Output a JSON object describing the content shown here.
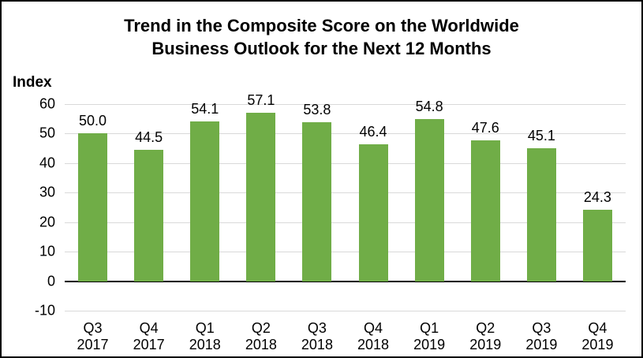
{
  "header": {
    "title_line1": "Trend in the Composite Score on the Worldwide",
    "title_line2": "Business Outlook for the Next 12 Months"
  },
  "axis": {
    "y_label": "Index"
  },
  "colors": {
    "bar": "#70AD47",
    "gridline": "#D9D9D9",
    "zero_line": "#000000",
    "text": "#000000",
    "background": "#FFFFFF",
    "border": "#000000"
  },
  "chart_data": {
    "type": "bar",
    "title": "Trend in the Composite Score on the Worldwide Business Outlook for the Next 12 Months",
    "ylabel": "Index",
    "xlabel": "",
    "ylim": [
      -10,
      60
    ],
    "yticks": [
      60,
      50,
      40,
      30,
      20,
      10,
      0,
      -10
    ],
    "grid": true,
    "legend": false,
    "categories": [
      "Q3 2017",
      "Q4 2017",
      "Q1 2018",
      "Q2 2018",
      "Q3 2018",
      "Q4 2018",
      "Q1 2019",
      "Q2 2019",
      "Q3 2019",
      "Q4 2019"
    ],
    "category_lines": [
      [
        "Q3",
        "2017"
      ],
      [
        "Q4",
        "2017"
      ],
      [
        "Q1",
        "2018"
      ],
      [
        "Q2",
        "2018"
      ],
      [
        "Q3",
        "2018"
      ],
      [
        "Q4",
        "2018"
      ],
      [
        "Q1",
        "2019"
      ],
      [
        "Q2",
        "2019"
      ],
      [
        "Q3",
        "2019"
      ],
      [
        "Q4",
        "2019"
      ]
    ],
    "values": [
      50.0,
      44.5,
      54.1,
      57.1,
      53.8,
      46.4,
      54.8,
      47.6,
      45.1,
      24.3
    ],
    "value_labels": [
      "50.0",
      "44.5",
      "54.1",
      "57.1",
      "53.8",
      "46.4",
      "54.8",
      "47.6",
      "45.1",
      "24.3"
    ],
    "bar_color": "#70AD47"
  }
}
